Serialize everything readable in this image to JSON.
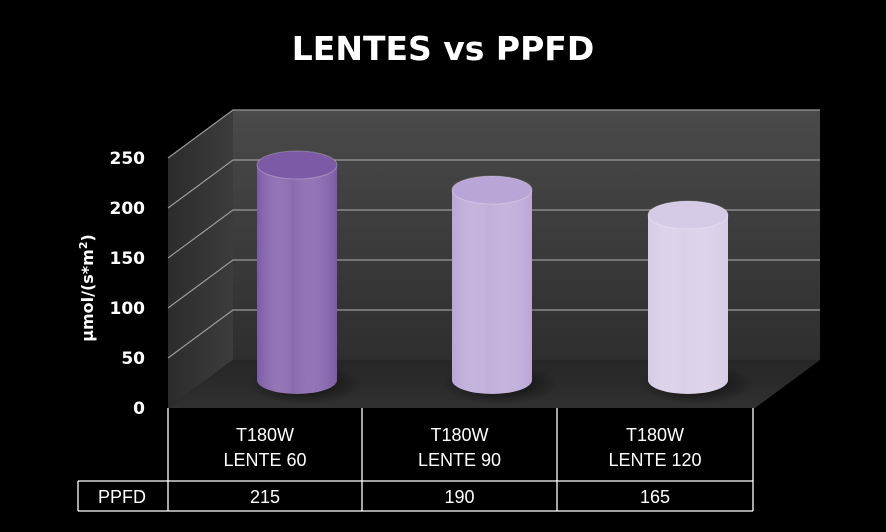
{
  "chart_data": {
    "type": "bar",
    "title": "LENTES vs PPFD",
    "ylabel_main": "µmol/(s*m",
    "ylabel_sup": "2",
    "ylabel_close": ")",
    "ylim": [
      0,
      250
    ],
    "yticks": [
      "0",
      "50",
      "100",
      "150",
      "200",
      "250"
    ],
    "categories": [
      [
        "T180W",
        "LENTE 60"
      ],
      [
        "T180W",
        "LENTE 90"
      ],
      [
        "T180W",
        "LENTE 120"
      ]
    ],
    "series": [
      {
        "name": "PPFD",
        "values": [
          215,
          190,
          165
        ]
      }
    ],
    "value_labels": [
      "215",
      "190",
      "165"
    ],
    "grid": true,
    "data_table": true,
    "colors": {
      "background": "#000000",
      "wall": "#3a3a3a",
      "floor": "#2a2a2a",
      "gridline": "#9a9a9a",
      "bar_colors": [
        "#7c5aa6",
        "#b9a6d6",
        "#d6cbe6"
      ]
    }
  }
}
